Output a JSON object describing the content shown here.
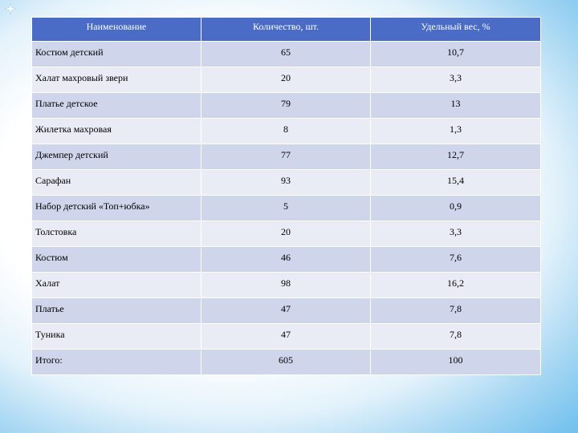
{
  "table": {
    "headers": [
      "Наименование",
      "Количество, шт.",
      "Удельный вес, %"
    ],
    "rows": [
      [
        "Костюм детский",
        "65",
        "10,7"
      ],
      [
        "Халат махровый звери",
        "20",
        "3,3"
      ],
      [
        "Платье детское",
        "79",
        "13"
      ],
      [
        "Жилетка махровая",
        "8",
        "1,3"
      ],
      [
        "Джемпер детский",
        "77",
        "12,7"
      ],
      [
        "Сарафан",
        "93",
        "15,4"
      ],
      [
        "Набор детский «Топ+юбка»",
        "5",
        "0,9"
      ],
      [
        "Толстовка",
        "20",
        "3,3"
      ],
      [
        "Костюм",
        "46",
        "7,6"
      ],
      [
        "Халат",
        "98",
        "16,2"
      ],
      [
        "Платье",
        "47",
        "7,8"
      ],
      [
        "Туника",
        "47",
        "7,8"
      ],
      [
        "Итого:",
        "605",
        "100"
      ]
    ]
  },
  "colors": {
    "header_bg": "#4a6cc7",
    "row_odd_bg": "#cfd5ea",
    "row_even_bg": "#e9ebf5",
    "background_edge": "#6fbfee"
  },
  "icons": {
    "corner": "star-icon"
  }
}
